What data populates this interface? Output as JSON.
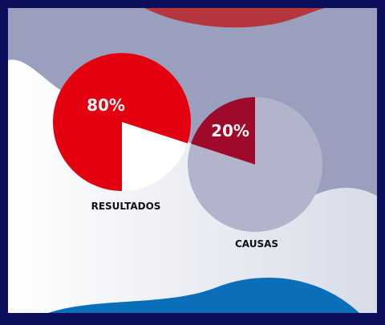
{
  "colors": {
    "frame": "#0b0f5c",
    "background_top": "#9a9fbd",
    "background_bottom": "#f2f4f8",
    "top_blob": "#b5363c",
    "bottom_wave": "#0b6eb8",
    "resultados_slice": "#e3000f",
    "causas_slice": "#a00a2a",
    "causas_rest": "#b2b4cc",
    "label_light": "#f2f2f5",
    "label_dark": "#111111"
  },
  "chart_data": {
    "type": "pie",
    "slices": [
      {
        "category": "RESULTADOS",
        "value": 80,
        "label": "80%"
      },
      {
        "category": "CAUSAS",
        "value": 20,
        "label": "20%"
      }
    ]
  }
}
